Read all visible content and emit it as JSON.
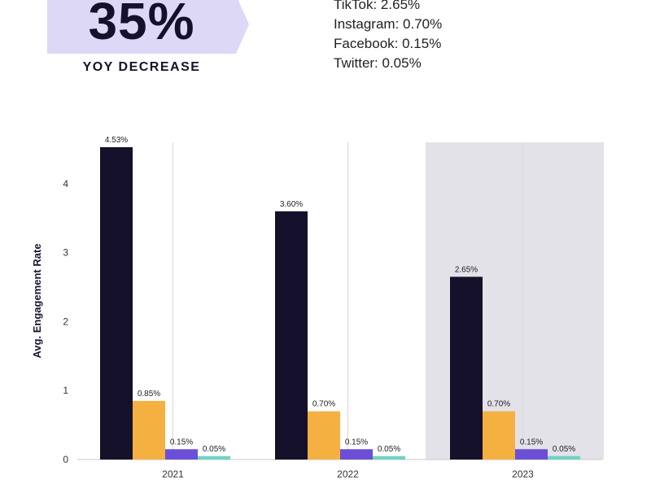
{
  "headline": {
    "value": "35%",
    "label": "YOY DECREASE"
  },
  "platform_rates": [
    "TikTok: 2.65%",
    "Instagram: 0.70%",
    "Facebook: 0.15%",
    "Twitter: 0.05%"
  ],
  "colors": {
    "banner": "#dcd8f6",
    "tiktok": "#15112b",
    "instagram": "#f5b042",
    "facebook": "#6b4fd6",
    "twitter": "#6fd3c4",
    "highlight_band": "#e3e2e8"
  },
  "chart_data": {
    "type": "bar",
    "categories": [
      "2021",
      "2022",
      "2023"
    ],
    "series": [
      {
        "values": [
          4.53,
          3.6,
          2.65
        ],
        "labels": [
          "4.53%",
          "3.60%",
          "2.65%"
        ],
        "color": "#15112b"
      },
      {
        "values": [
          0.85,
          0.7,
          0.7
        ],
        "labels": [
          "0.85%",
          "0.70%",
          "0.70%"
        ],
        "color": "#f5b042"
      },
      {
        "values": [
          0.15,
          0.15,
          0.15
        ],
        "labels": [
          "0.15%",
          "0.15%",
          "0.15%"
        ],
        "color": "#6b4fd6"
      },
      {
        "values": [
          0.05,
          0.05,
          0.05
        ],
        "labels": [
          "0.05%",
          "0.05%",
          "0.05%"
        ],
        "color": "#6fd3c4"
      }
    ],
    "ylabel": "Avg. Engagement Rate",
    "yticks": [
      0,
      1,
      2,
      3,
      4
    ],
    "ylim": [
      0,
      4.6
    ],
    "highlighted_category": "2023",
    "grid": false
  }
}
